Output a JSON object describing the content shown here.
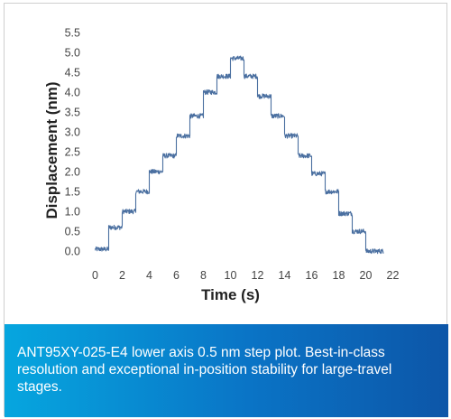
{
  "chart_data": {
    "type": "line",
    "title": "",
    "xlabel": "Time (s)",
    "ylabel": "Displacement (nm)",
    "xlim": [
      -1.5,
      22.5
    ],
    "ylim": [
      -0.2,
      5.5
    ],
    "xticks": [
      0,
      2,
      4,
      6,
      8,
      10,
      12,
      14,
      16,
      18,
      20,
      22
    ],
    "yticks": [
      0.0,
      0.5,
      1.0,
      1.5,
      2.0,
      2.5,
      3.0,
      3.5,
      4.0,
      4.5,
      5.0,
      5.5
    ],
    "grid": false,
    "line_color": "#4a6fa0",
    "series": [
      {
        "steps": [
          {
            "x_start": 0.0,
            "x_end": 1.0,
            "y": 0.05
          },
          {
            "x_start": 1.0,
            "x_end": 2.0,
            "y": 0.6
          },
          {
            "x_start": 2.0,
            "x_end": 3.0,
            "y": 1.0
          },
          {
            "x_start": 3.0,
            "x_end": 4.0,
            "y": 1.5
          },
          {
            "x_start": 4.0,
            "x_end": 5.0,
            "y": 2.0
          },
          {
            "x_start": 5.0,
            "x_end": 6.0,
            "y": 2.4
          },
          {
            "x_start": 6.0,
            "x_end": 7.0,
            "y": 2.9
          },
          {
            "x_start": 7.0,
            "x_end": 8.0,
            "y": 3.4
          },
          {
            "x_start": 8.0,
            "x_end": 9.0,
            "y": 4.0
          },
          {
            "x_start": 9.0,
            "x_end": 10.0,
            "y": 4.4
          },
          {
            "x_start": 10.0,
            "x_end": 11.0,
            "y": 4.85
          },
          {
            "x_start": 11.0,
            "x_end": 12.0,
            "y": 4.4
          },
          {
            "x_start": 12.0,
            "x_end": 13.0,
            "y": 3.9
          },
          {
            "x_start": 13.0,
            "x_end": 14.0,
            "y": 3.4
          },
          {
            "x_start": 14.0,
            "x_end": 15.0,
            "y": 2.9
          },
          {
            "x_start": 15.0,
            "x_end": 16.0,
            "y": 2.4
          },
          {
            "x_start": 16.0,
            "x_end": 17.0,
            "y": 1.95
          },
          {
            "x_start": 17.0,
            "x_end": 18.0,
            "y": 1.5
          },
          {
            "x_start": 18.0,
            "x_end": 19.0,
            "y": 0.95
          },
          {
            "x_start": 19.0,
            "x_end": 20.0,
            "y": 0.5
          },
          {
            "x_start": 20.0,
            "x_end": 21.3,
            "y": 0.0
          }
        ],
        "noise_amplitude_nm": 0.06
      }
    ]
  },
  "caption": {
    "text": "ANT95XY-025-E4 lower axis 0.5 nm step plot. Best-in-class resolution and exceptional in-position stability for large-travel stages."
  }
}
